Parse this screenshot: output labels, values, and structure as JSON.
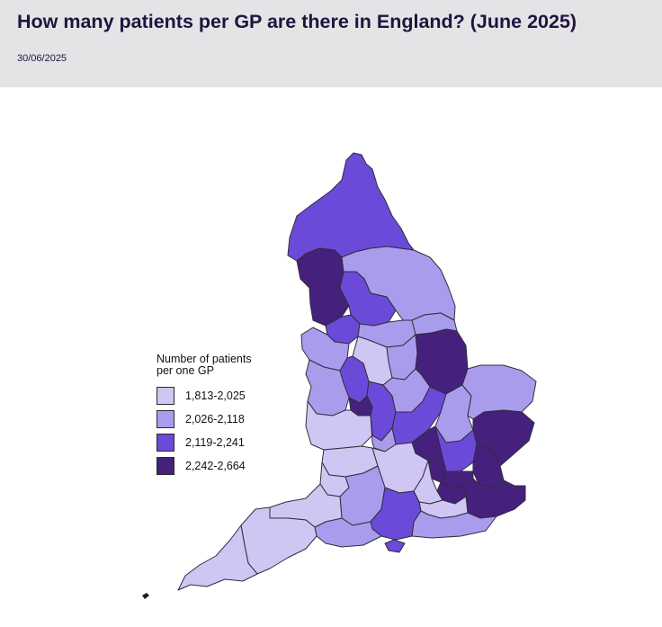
{
  "header": {
    "title": "How many patients per GP are there in England? (June 2025)",
    "date": "30/06/2025"
  },
  "legend": {
    "title": "Number of patients per one GP",
    "items": [
      {
        "label": "1,813-2,025",
        "color": "#cfc6f4"
      },
      {
        "label": "2,026-2,118",
        "color": "#aa9ced"
      },
      {
        "label": "2,119-2,241",
        "color": "#6b4ad9"
      },
      {
        "label": "2,242-2,664",
        "color": "#45207d"
      }
    ]
  },
  "map": {
    "stroke_color": "#2f2f3a",
    "regions": [
      {
        "id": "north-east-cumbria",
        "band": 3
      },
      {
        "id": "lancashire",
        "band": 4
      },
      {
        "id": "north-yorkshire",
        "band": 2
      },
      {
        "id": "west-yorkshire",
        "band": 3
      },
      {
        "id": "humber",
        "band": 2
      },
      {
        "id": "greater-manchester",
        "band": 3
      },
      {
        "id": "south-yorkshire",
        "band": 2
      },
      {
        "id": "cheshire-merseyside",
        "band": 2
      },
      {
        "id": "derbyshire",
        "band": 1
      },
      {
        "id": "nottinghamshire",
        "band": 2
      },
      {
        "id": "lincolnshire",
        "band": 4
      },
      {
        "id": "staffordshire",
        "band": 3
      },
      {
        "id": "shropshire",
        "band": 2
      },
      {
        "id": "black-country",
        "band": 4
      },
      {
        "id": "birmingham",
        "band": 3
      },
      {
        "id": "leicestershire",
        "band": 2
      },
      {
        "id": "northamptonshire",
        "band": 3
      },
      {
        "id": "cambridgeshire",
        "band": 2
      },
      {
        "id": "norfolk",
        "band": 2
      },
      {
        "id": "suffolk-essex-north",
        "band": 4
      },
      {
        "id": "herefordshire-worcestershire",
        "band": 1
      },
      {
        "id": "coventry-warwickshire",
        "band": 2
      },
      {
        "id": "milton-keynes-bedfordshire",
        "band": 4
      },
      {
        "id": "hertfordshire",
        "band": 3
      },
      {
        "id": "essex-south",
        "band": 4
      },
      {
        "id": "gloucestershire",
        "band": 1
      },
      {
        "id": "oxfordshire-bucks",
        "band": 1
      },
      {
        "id": "london-nw",
        "band": 4
      },
      {
        "id": "london-ne",
        "band": 4
      },
      {
        "id": "london-s",
        "band": 4
      },
      {
        "id": "kent",
        "band": 4
      },
      {
        "id": "bristol",
        "band": 1
      },
      {
        "id": "wiltshire",
        "band": 2
      },
      {
        "id": "berkshire",
        "band": 1
      },
      {
        "id": "surrey",
        "band": 1
      },
      {
        "id": "sussex",
        "band": 2
      },
      {
        "id": "hampshire",
        "band": 3
      },
      {
        "id": "isle-of-wight",
        "band": 3
      },
      {
        "id": "dorset",
        "band": 2
      },
      {
        "id": "somerset",
        "band": 1
      },
      {
        "id": "devon",
        "band": 1
      },
      {
        "id": "cornwall",
        "band": 1
      }
    ]
  }
}
